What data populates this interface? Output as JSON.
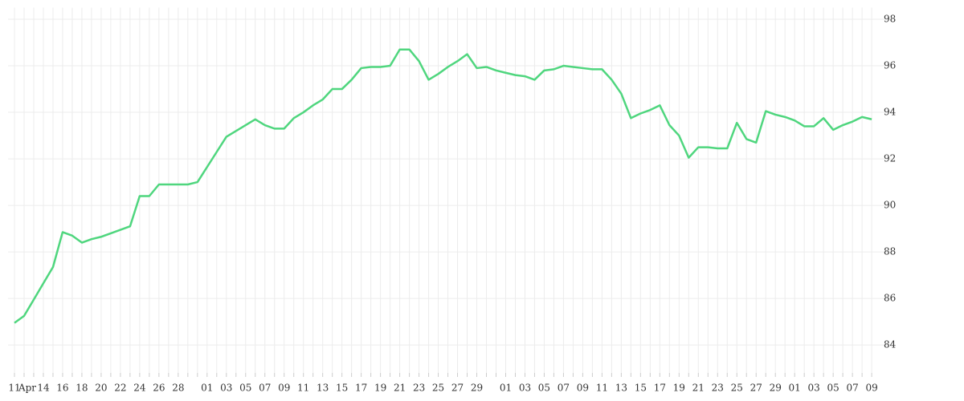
{
  "chart_data": {
    "type": "line",
    "categories": [
      "11",
      "Apr",
      null,
      "14",
      null,
      "16",
      null,
      "18",
      null,
      "20",
      null,
      "22",
      null,
      "24",
      null,
      "26",
      null,
      "28",
      null,
      null,
      "01",
      null,
      "03",
      null,
      "05",
      null,
      "07",
      null,
      "09",
      null,
      "11",
      null,
      "13",
      null,
      "15",
      null,
      "17",
      null,
      "19",
      null,
      "21",
      null,
      "23",
      null,
      "25",
      null,
      "27",
      null,
      "29",
      null,
      null,
      "01",
      null,
      "03",
      null,
      "05",
      null,
      "07",
      null,
      "09",
      null,
      "11",
      null,
      "13",
      null,
      "15",
      null,
      "17",
      null,
      "19",
      null,
      "21",
      null,
      "23",
      null,
      "25",
      null,
      "27",
      null,
      "29",
      null,
      "01",
      null,
      "03",
      null,
      "05",
      null,
      "07",
      null,
      "09"
    ],
    "series": [
      {
        "color": "#4fd67e",
        "values": [
          84.95,
          85.25,
          85.95,
          86.65,
          87.35,
          88.85,
          88.7,
          88.4,
          88.55,
          88.65,
          88.8,
          88.95,
          89.1,
          90.4,
          90.4,
          90.9,
          90.9,
          90.9,
          90.9,
          91.0,
          91.65,
          92.3,
          92.95,
          93.2,
          93.45,
          93.7,
          93.45,
          93.3,
          93.3,
          93.75,
          94.0,
          94.3,
          94.55,
          95.0,
          95.0,
          95.4,
          95.9,
          95.95,
          95.95,
          96.0,
          96.7,
          96.7,
          96.2,
          95.4,
          95.65,
          95.95,
          96.2,
          96.5,
          95.9,
          95.95,
          95.8,
          95.7,
          95.6,
          95.55,
          95.4,
          95.8,
          95.85,
          96.0,
          95.95,
          95.9,
          95.85,
          95.85,
          95.4,
          94.8,
          93.75,
          93.95,
          94.1,
          94.3,
          93.45,
          93.0,
          92.05,
          92.5,
          92.5,
          92.45,
          92.45,
          93.55,
          92.85,
          92.7,
          94.05,
          93.9,
          93.8,
          93.65,
          93.4,
          93.4,
          93.75,
          93.25,
          93.45,
          93.6,
          93.8,
          93.7
        ]
      }
    ],
    "ylim": [
      82.8,
      98.5
    ],
    "yticks": [
      84,
      86,
      88,
      90,
      92,
      94,
      96,
      98
    ],
    "grid": true
  }
}
